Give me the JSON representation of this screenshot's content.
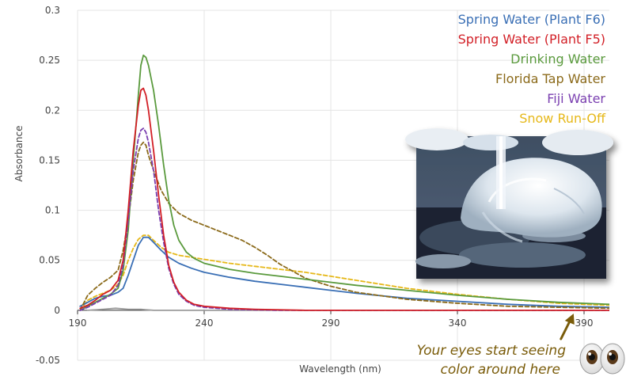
{
  "chart_data": {
    "type": "line",
    "title": "",
    "xlabel": "Wavelength (nm)",
    "ylabel": "Absorbance",
    "xlim": [
      190,
      400
    ],
    "ylim": [
      -0.05,
      0.3
    ],
    "x_ticks": [
      190,
      240,
      290,
      340,
      390
    ],
    "x_tick_labels": [
      "190",
      "240",
      "290",
      "340",
      "390"
    ],
    "y_ticks": [
      -0.05,
      0,
      0.05,
      0.1,
      0.15,
      0.2,
      0.25,
      0.3
    ],
    "y_tick_labels": [
      "-0.05",
      "0",
      "0.05",
      "0.1",
      "0.15",
      "0.2",
      "0.25",
      "0.3"
    ],
    "grid": true,
    "legend_position": "top-right",
    "series": [
      {
        "name": "Spring Water (Plant F6)",
        "color": "#3a6fb5",
        "dashed": false,
        "points": [
          [
            191,
            0.004
          ],
          [
            194,
            0.008
          ],
          [
            197,
            0.012
          ],
          [
            200,
            0.014
          ],
          [
            203,
            0.015
          ],
          [
            206,
            0.018
          ],
          [
            208,
            0.022
          ],
          [
            210,
            0.035
          ],
          [
            212,
            0.05
          ],
          [
            214,
            0.065
          ],
          [
            216,
            0.073
          ],
          [
            218,
            0.073
          ],
          [
            220,
            0.068
          ],
          [
            223,
            0.06
          ],
          [
            226,
            0.053
          ],
          [
            230,
            0.047
          ],
          [
            235,
            0.042
          ],
          [
            240,
            0.038
          ],
          [
            250,
            0.033
          ],
          [
            260,
            0.029
          ],
          [
            270,
            0.026
          ],
          [
            280,
            0.023
          ],
          [
            290,
            0.02
          ],
          [
            300,
            0.017
          ],
          [
            320,
            0.012
          ],
          [
            340,
            0.009
          ],
          [
            360,
            0.006
          ],
          [
            380,
            0.004
          ],
          [
            400,
            0.003
          ]
        ]
      },
      {
        "name": "Spring Water (Plant F5)",
        "color": "#d21f26",
        "dashed": false,
        "points": [
          [
            191,
            0.002
          ],
          [
            194,
            0.005
          ],
          [
            197,
            0.01
          ],
          [
            200,
            0.016
          ],
          [
            203,
            0.02
          ],
          [
            206,
            0.03
          ],
          [
            208,
            0.05
          ],
          [
            210,
            0.1
          ],
          [
            212,
            0.16
          ],
          [
            214,
            0.205
          ],
          [
            215,
            0.22
          ],
          [
            216,
            0.222
          ],
          [
            217,
            0.215
          ],
          [
            218,
            0.2
          ],
          [
            220,
            0.16
          ],
          [
            222,
            0.115
          ],
          [
            224,
            0.075
          ],
          [
            226,
            0.045
          ],
          [
            228,
            0.028
          ],
          [
            230,
            0.018
          ],
          [
            233,
            0.01
          ],
          [
            236,
            0.006
          ],
          [
            240,
            0.004
          ],
          [
            250,
            0.002
          ],
          [
            260,
            0.001
          ],
          [
            280,
            0.0
          ],
          [
            300,
            0.0
          ],
          [
            340,
            0.0
          ],
          [
            400,
            0.0
          ]
        ]
      },
      {
        "name": "Drinking Water",
        "color": "#5a9a3d",
        "dashed": false,
        "points": [
          [
            191,
            0.0
          ],
          [
            194,
            0.004
          ],
          [
            197,
            0.008
          ],
          [
            200,
            0.012
          ],
          [
            203,
            0.016
          ],
          [
            206,
            0.022
          ],
          [
            208,
            0.04
          ],
          [
            210,
            0.08
          ],
          [
            212,
            0.15
          ],
          [
            214,
            0.215
          ],
          [
            215,
            0.245
          ],
          [
            216,
            0.255
          ],
          [
            217,
            0.253
          ],
          [
            218,
            0.245
          ],
          [
            220,
            0.22
          ],
          [
            222,
            0.185
          ],
          [
            224,
            0.145
          ],
          [
            226,
            0.11
          ],
          [
            228,
            0.085
          ],
          [
            230,
            0.07
          ],
          [
            233,
            0.058
          ],
          [
            236,
            0.052
          ],
          [
            240,
            0.047
          ],
          [
            250,
            0.041
          ],
          [
            260,
            0.037
          ],
          [
            270,
            0.034
          ],
          [
            280,
            0.031
          ],
          [
            290,
            0.028
          ],
          [
            300,
            0.025
          ],
          [
            320,
            0.02
          ],
          [
            340,
            0.015
          ],
          [
            360,
            0.011
          ],
          [
            380,
            0.008
          ],
          [
            400,
            0.006
          ]
        ]
      },
      {
        "name": "Florida Tap Water",
        "color": "#8b6a1a",
        "dashed": true,
        "points": [
          [
            191,
            0.0
          ],
          [
            194,
            0.015
          ],
          [
            197,
            0.022
          ],
          [
            200,
            0.028
          ],
          [
            203,
            0.033
          ],
          [
            206,
            0.04
          ],
          [
            208,
            0.06
          ],
          [
            210,
            0.09
          ],
          [
            212,
            0.13
          ],
          [
            214,
            0.158
          ],
          [
            215,
            0.165
          ],
          [
            216,
            0.168
          ],
          [
            217,
            0.165
          ],
          [
            218,
            0.155
          ],
          [
            220,
            0.14
          ],
          [
            223,
            0.12
          ],
          [
            226,
            0.107
          ],
          [
            230,
            0.097
          ],
          [
            235,
            0.09
          ],
          [
            240,
            0.085
          ],
          [
            245,
            0.08
          ],
          [
            250,
            0.075
          ],
          [
            255,
            0.07
          ],
          [
            260,
            0.063
          ],
          [
            265,
            0.055
          ],
          [
            270,
            0.046
          ],
          [
            275,
            0.039
          ],
          [
            280,
            0.032
          ],
          [
            290,
            0.024
          ],
          [
            300,
            0.018
          ],
          [
            320,
            0.011
          ],
          [
            340,
            0.007
          ],
          [
            360,
            0.004
          ],
          [
            380,
            0.003
          ],
          [
            400,
            0.002
          ]
        ]
      },
      {
        "name": "Fiji Water",
        "color": "#7a3fb0",
        "dashed": true,
        "points": [
          [
            191,
            0.0
          ],
          [
            194,
            0.003
          ],
          [
            197,
            0.007
          ],
          [
            200,
            0.011
          ],
          [
            203,
            0.015
          ],
          [
            206,
            0.025
          ],
          [
            208,
            0.045
          ],
          [
            210,
            0.09
          ],
          [
            212,
            0.14
          ],
          [
            214,
            0.172
          ],
          [
            215,
            0.18
          ],
          [
            216,
            0.182
          ],
          [
            217,
            0.178
          ],
          [
            218,
            0.168
          ],
          [
            220,
            0.14
          ],
          [
            222,
            0.1
          ],
          [
            224,
            0.068
          ],
          [
            226,
            0.042
          ],
          [
            228,
            0.026
          ],
          [
            230,
            0.016
          ],
          [
            233,
            0.009
          ],
          [
            236,
            0.005
          ],
          [
            240,
            0.003
          ],
          [
            250,
            0.001
          ],
          [
            270,
            0.0
          ],
          [
            300,
            0.0
          ],
          [
            340,
            0.0
          ],
          [
            400,
            0.0
          ]
        ]
      },
      {
        "name": "Snow Run-Off",
        "color": "#e6b819",
        "dashed": true,
        "points": [
          [
            191,
            0.0
          ],
          [
            194,
            0.01
          ],
          [
            197,
            0.014
          ],
          [
            200,
            0.017
          ],
          [
            203,
            0.02
          ],
          [
            206,
            0.026
          ],
          [
            208,
            0.035
          ],
          [
            210,
            0.05
          ],
          [
            212,
            0.062
          ],
          [
            214,
            0.071
          ],
          [
            216,
            0.075
          ],
          [
            218,
            0.075
          ],
          [
            220,
            0.07
          ],
          [
            223,
            0.063
          ],
          [
            226,
            0.058
          ],
          [
            230,
            0.055
          ],
          [
            235,
            0.053
          ],
          [
            240,
            0.051
          ],
          [
            250,
            0.047
          ],
          [
            260,
            0.044
          ],
          [
            270,
            0.041
          ],
          [
            280,
            0.038
          ],
          [
            290,
            0.034
          ],
          [
            300,
            0.03
          ],
          [
            320,
            0.022
          ],
          [
            340,
            0.016
          ],
          [
            360,
            0.011
          ],
          [
            380,
            0.007
          ],
          [
            400,
            0.005
          ]
        ]
      },
      {
        "name": "",
        "color": "#9a9a9a",
        "dashed": false,
        "points": [
          [
            194,
            0.0
          ],
          [
            200,
            0.001
          ],
          [
            205,
            0.002
          ],
          [
            210,
            0.001
          ],
          [
            215,
            0.001
          ],
          [
            220,
            0.0
          ],
          [
            230,
            0.0
          ],
          [
            240,
            0.0
          ],
          [
            260,
            0.0
          ],
          [
            300,
            0.0
          ],
          [
            340,
            0.0
          ],
          [
            400,
            0.0
          ]
        ]
      }
    ],
    "annotation": {
      "text_lines": [
        "Your eyes start seeing",
        "color around here"
      ],
      "color": "#7a5c0a",
      "arrow_target_x": 384
    }
  },
  "inset_image": {
    "icon": "frozen-water-photo"
  },
  "eyes": {
    "icon": "eyes-emoji"
  }
}
